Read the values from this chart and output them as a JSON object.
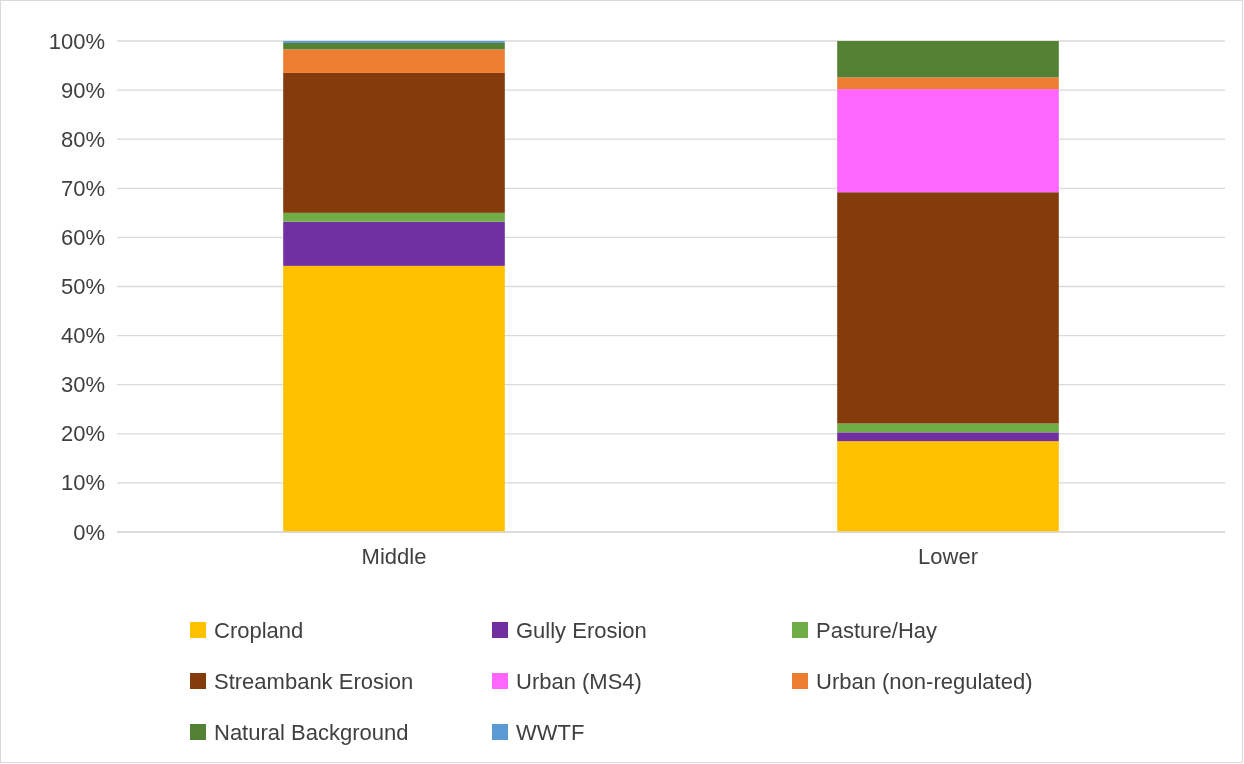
{
  "chart_data": {
    "type": "bar",
    "stacked": true,
    "categories": [
      "Middle",
      "Lower"
    ],
    "series": [
      {
        "name": "Cropland",
        "color": "#ffc000",
        "values": [
          54.2,
          18.5
        ]
      },
      {
        "name": "Gully Erosion",
        "color": "#7030a0",
        "values": [
          9.0,
          1.8
        ]
      },
      {
        "name": "Pasture/Hay",
        "color": "#70ad47",
        "values": [
          1.8,
          1.8
        ]
      },
      {
        "name": "Streambank Erosion",
        "color": "#843c0c",
        "values": [
          28.5,
          47.1
        ]
      },
      {
        "name": "Urban (MS4)",
        "color": "#ff66ff",
        "values": [
          0,
          21.0
        ]
      },
      {
        "name": "Urban (non-regulated)",
        "color": "#ed7d31",
        "values": [
          4.8,
          2.4
        ]
      },
      {
        "name": "Natural Background",
        "color": "#548235",
        "values": [
          1.3,
          7.4
        ]
      },
      {
        "name": "WWTF",
        "color": "#5b9bd5",
        "values": [
          0.4,
          0
        ]
      }
    ],
    "ylim": [
      0,
      100
    ],
    "yticks": [
      {
        "value": 0,
        "label": "0%"
      },
      {
        "value": 10,
        "label": "10%"
      },
      {
        "value": 20,
        "label": "20%"
      },
      {
        "value": 30,
        "label": "30%"
      },
      {
        "value": 40,
        "label": "40%"
      },
      {
        "value": 50,
        "label": "50%"
      },
      {
        "value": 60,
        "label": "60%"
      },
      {
        "value": 70,
        "label": "70%"
      },
      {
        "value": 80,
        "label": "80%"
      },
      {
        "value": 90,
        "label": "90%"
      },
      {
        "value": 100,
        "label": "100%"
      }
    ],
    "grid": "y",
    "legend": "bottom"
  }
}
